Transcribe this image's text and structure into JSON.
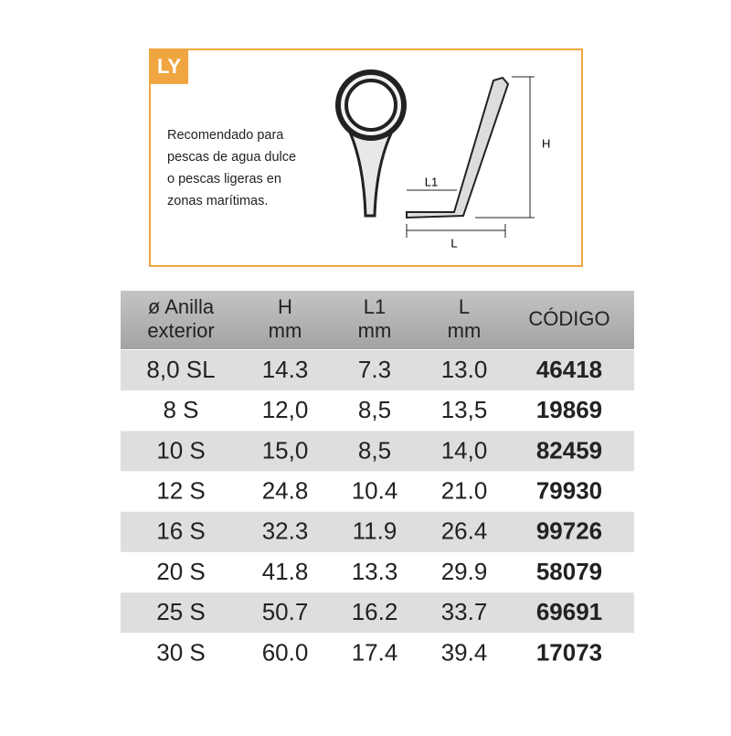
{
  "header": {
    "badge": "LY",
    "description": [
      "Recomendado para",
      "pescas de agua dulce",
      "o pescas ligeras en",
      "zonas marítimas."
    ],
    "diagram_labels": {
      "h": "H",
      "l1": "L1",
      "l": "L"
    }
  },
  "table": {
    "columns": [
      [
        "ø Anilla",
        "exterior"
      ],
      [
        "H",
        "mm"
      ],
      [
        "L1",
        "mm"
      ],
      [
        "L",
        "mm"
      ],
      [
        "CÓDIGO"
      ]
    ],
    "rows": [
      [
        "8,0 SL",
        "14.3",
        "7.3",
        "13.0",
        "46418"
      ],
      [
        "8 S",
        "12,0",
        "8,5",
        "13,5",
        "19869"
      ],
      [
        "10 S",
        "15,0",
        "8,5",
        "14,0",
        "82459"
      ],
      [
        "12 S",
        "24.8",
        "10.4",
        "21.0",
        "79930"
      ],
      [
        "16 S",
        "32.3",
        "11.9",
        "26.4",
        "99726"
      ],
      [
        "20 S",
        "41.8",
        "13.3",
        "29.9",
        "58079"
      ],
      [
        "25 S",
        "50.7",
        "16.2",
        "33.7",
        "69691"
      ],
      [
        "30 S",
        "60.0",
        "17.4",
        "39.4",
        "17073"
      ]
    ]
  }
}
